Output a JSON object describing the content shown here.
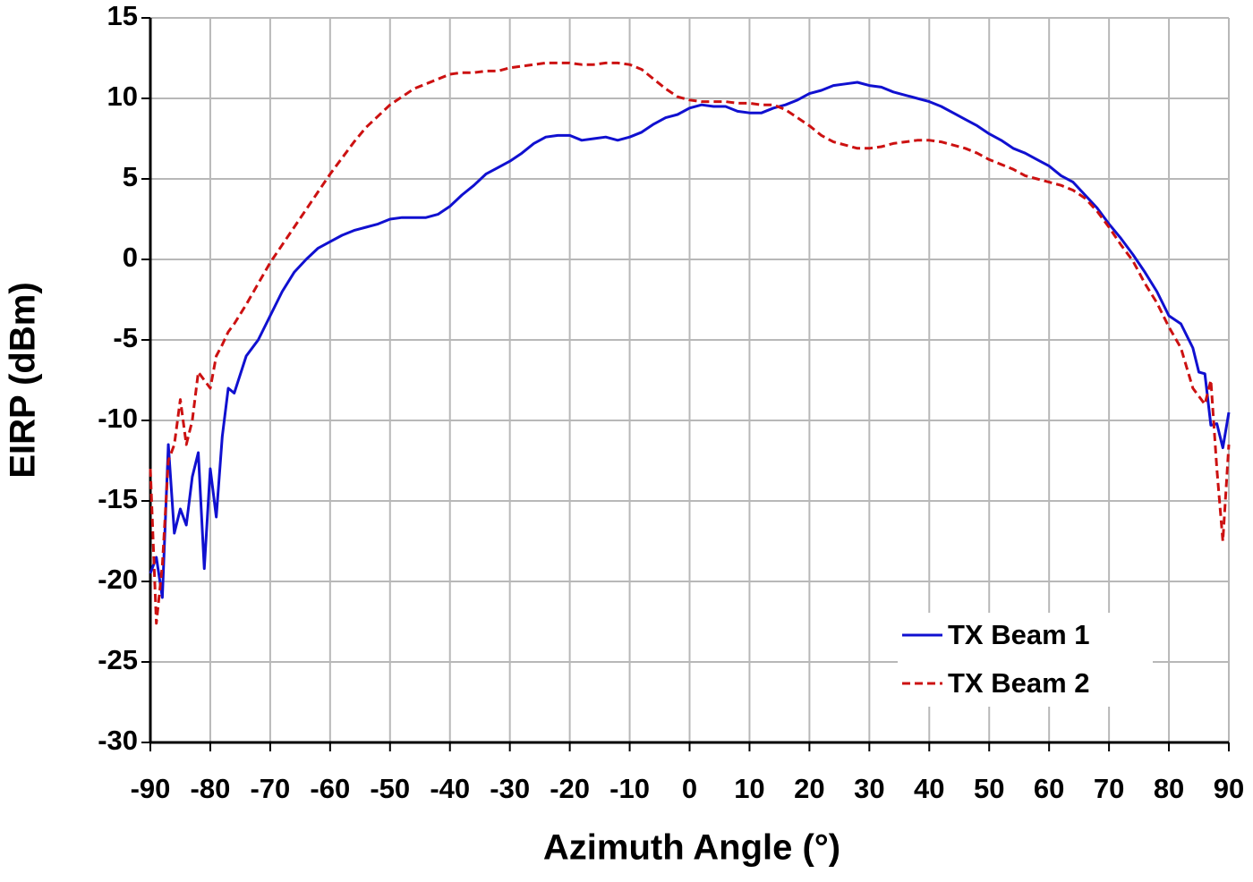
{
  "chart_data": {
    "type": "line",
    "xlabel": "Azimuth Angle (°)",
    "ylabel": "EIRP (dBm)",
    "x": [
      -90,
      -89,
      -88,
      -87,
      -86,
      -85,
      -84,
      -83,
      -82,
      -81,
      -80,
      -79,
      -78,
      -77,
      -76,
      -74,
      -72,
      -70,
      -68,
      -66,
      -64,
      -62,
      -60,
      -58,
      -56,
      -54,
      -52,
      -50,
      -48,
      -46,
      -44,
      -42,
      -40,
      -38,
      -36,
      -34,
      -32,
      -30,
      -28,
      -26,
      -24,
      -22,
      -20,
      -18,
      -16,
      -14,
      -12,
      -10,
      -8,
      -6,
      -4,
      -2,
      0,
      2,
      4,
      6,
      8,
      10,
      12,
      14,
      16,
      18,
      20,
      22,
      24,
      26,
      28,
      30,
      32,
      34,
      36,
      38,
      40,
      42,
      44,
      46,
      48,
      50,
      52,
      54,
      56,
      58,
      60,
      62,
      64,
      66,
      68,
      70,
      72,
      74,
      76,
      78,
      80,
      82,
      84,
      85,
      86,
      87,
      88,
      89,
      90
    ],
    "series": [
      {
        "name": "TX Beam 1",
        "color": "#1010d0",
        "dash": "solid",
        "values": [
          -19.5,
          -18.5,
          -21,
          -11.5,
          -17,
          -15.5,
          -16.5,
          -13.5,
          -12,
          -19.2,
          -13,
          -16,
          -11,
          -8,
          -8.3,
          -6,
          -5,
          -3.5,
          -2,
          -0.8,
          0,
          0.7,
          1.1,
          1.5,
          1.8,
          2,
          2.2,
          2.5,
          2.6,
          2.6,
          2.6,
          2.8,
          3.3,
          4,
          4.6,
          5.3,
          5.7,
          6.1,
          6.6,
          7.2,
          7.6,
          7.7,
          7.7,
          7.4,
          7.5,
          7.6,
          7.4,
          7.6,
          7.9,
          8.4,
          8.8,
          9,
          9.4,
          9.6,
          9.5,
          9.5,
          9.2,
          9.1,
          9.1,
          9.4,
          9.6,
          9.9,
          10.3,
          10.5,
          10.8,
          10.9,
          11,
          10.8,
          10.7,
          10.4,
          10.2,
          10,
          9.8,
          9.5,
          9.1,
          8.7,
          8.3,
          7.8,
          7.4,
          6.9,
          6.6,
          6.2,
          5.8,
          5.2,
          4.8,
          4,
          3.2,
          2.2,
          1.3,
          0.3,
          -0.8,
          -2,
          -3.5,
          -4,
          -5.5,
          -7,
          -7.1,
          -10.3,
          -10.2,
          -11.7,
          -9.5
        ]
      },
      {
        "name": "TX Beam 2",
        "color": "#cc1111",
        "dash": "dashed",
        "values": [
          -13,
          -22.6,
          -19,
          -12.5,
          -11.5,
          -8.7,
          -11.5,
          -10,
          -7,
          -7.5,
          -8,
          -6,
          -5.3,
          -4.5,
          -4,
          -2.8,
          -1.5,
          -0.2,
          0.9,
          2,
          3.1,
          4.2,
          5.3,
          6.3,
          7.3,
          8.2,
          8.9,
          9.6,
          10.1,
          10.6,
          10.9,
          11.2,
          11.5,
          11.6,
          11.6,
          11.7,
          11.7,
          11.9,
          12,
          12.1,
          12.2,
          12.2,
          12.2,
          12.1,
          12.1,
          12.2,
          12.2,
          12.1,
          11.8,
          11.2,
          10.6,
          10.1,
          9.9,
          9.8,
          9.8,
          9.8,
          9.7,
          9.7,
          9.6,
          9.6,
          9.3,
          8.8,
          8.3,
          7.7,
          7.3,
          7.1,
          6.9,
          6.9,
          7,
          7.2,
          7.3,
          7.4,
          7.4,
          7.3,
          7.1,
          6.9,
          6.6,
          6.2,
          5.9,
          5.6,
          5.2,
          5,
          4.8,
          4.6,
          4.3,
          3.8,
          3,
          2,
          0.9,
          -0.1,
          -1.5,
          -2.7,
          -4.2,
          -5.5,
          -8,
          -8.5,
          -9,
          -7.5,
          -13,
          -17.5,
          -11.5
        ]
      }
    ],
    "xlim": [
      -90,
      90
    ],
    "xticks": [
      -90,
      -80,
      -70,
      -60,
      -50,
      -40,
      -30,
      -20,
      -10,
      0,
      10,
      20,
      30,
      40,
      50,
      60,
      70,
      80,
      90
    ],
    "ylim": [
      -30,
      15
    ],
    "yticks": [
      -30,
      -25,
      -20,
      -15,
      -10,
      -5,
      0,
      5,
      10,
      15
    ],
    "grid": true,
    "legend": "lower right"
  }
}
